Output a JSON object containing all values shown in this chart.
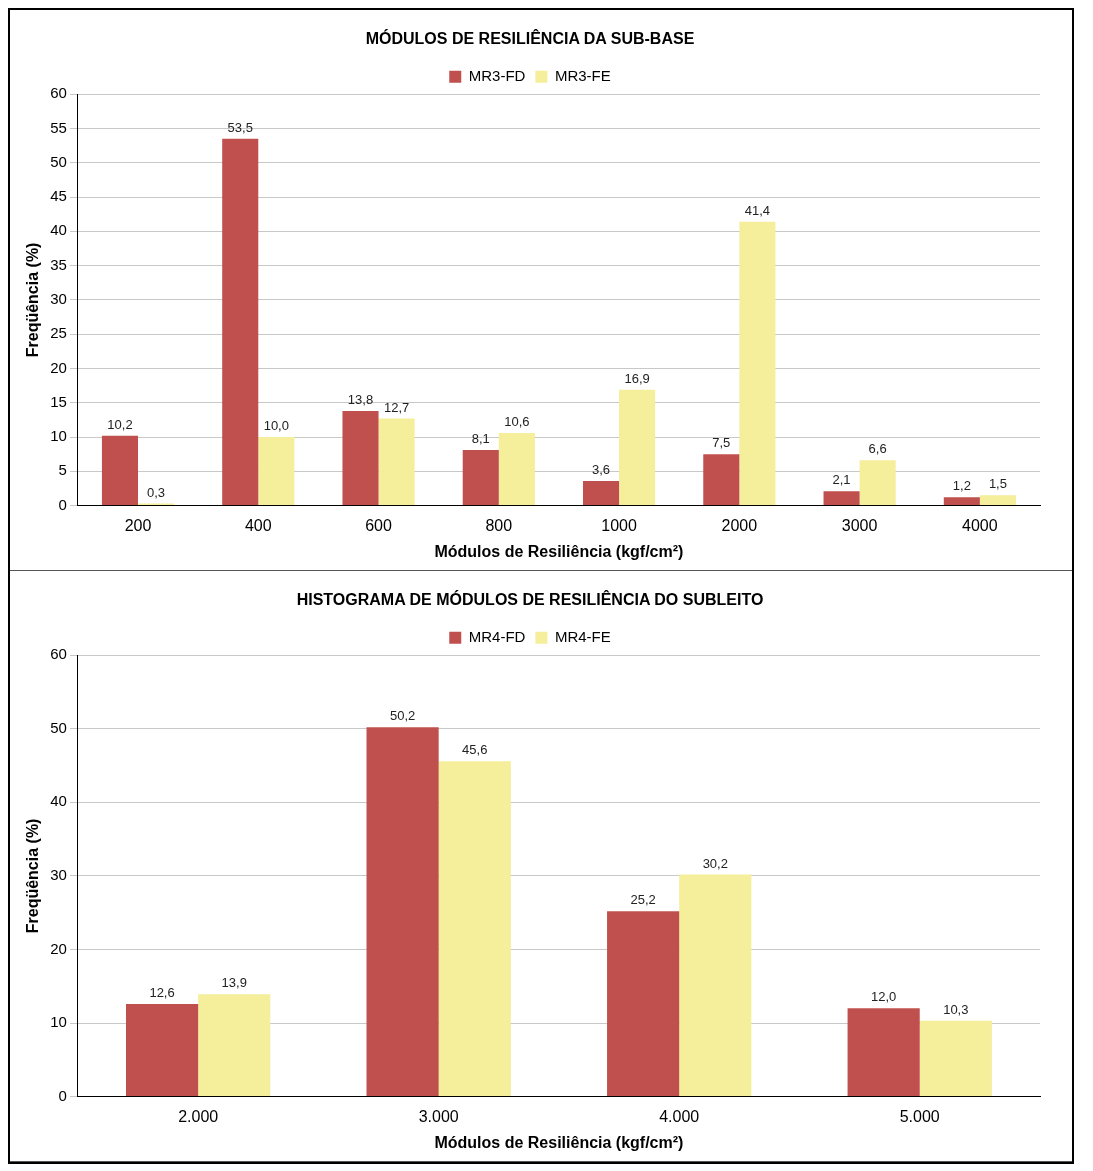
{
  "chart_data": [
    {
      "type": "bar",
      "title": "MÓDULOS DE RESILIÊNCIA DA SUB-BASE",
      "xlabel": "Módulos de Resiliência (kgf/cm²)",
      "ylabel": "Freqüência (%)",
      "categories": [
        "200",
        "400",
        "600",
        "800",
        "1000",
        "2000",
        "3000",
        "4000"
      ],
      "series": [
        {
          "name": "MR3-FD",
          "color": "#c0504d",
          "values": [
            10.2,
            53.5,
            13.8,
            8.1,
            3.6,
            7.5,
            2.1,
            1.2
          ],
          "value_labels": [
            "10,2",
            "53,5",
            "13,8",
            "8,1",
            "3,6",
            "7,5",
            "2,1",
            "1,2"
          ]
        },
        {
          "name": "MR3-FE",
          "color": "#f5ee9a",
          "values": [
            0.3,
            10.0,
            12.7,
            10.6,
            16.9,
            41.4,
            6.6,
            1.5
          ],
          "value_labels": [
            "0,3",
            "10,0",
            "12,7",
            "10,6",
            "16,9",
            "41,4",
            "6,6",
            "1,5"
          ]
        }
      ],
      "ylim": [
        0,
        60
      ],
      "yticks": [
        0,
        5,
        10,
        15,
        20,
        25,
        30,
        35,
        40,
        45,
        50,
        55,
        60
      ],
      "grid": "y",
      "legend": "top"
    },
    {
      "type": "bar",
      "title": "HISTOGRAMA DE MÓDULOS DE RESILIÊNCIA DO SUBLEITO",
      "xlabel": "Módulos de Resiliência (kgf/cm²)",
      "ylabel": "Freqüência (%)",
      "categories": [
        "2.000",
        "3.000",
        "4.000",
        "5.000"
      ],
      "series": [
        {
          "name": "MR4-FD",
          "color": "#c0504d",
          "values": [
            12.6,
            50.2,
            25.2,
            12.0
          ],
          "value_labels": [
            "12,6",
            "50,2",
            "25,2",
            "12,0"
          ]
        },
        {
          "name": "MR4-FE",
          "color": "#f5ee9a",
          "values": [
            13.9,
            45.6,
            30.2,
            10.3
          ],
          "value_labels": [
            "13,9",
            "45,6",
            "30,2",
            "10,3"
          ]
        }
      ],
      "ylim": [
        0,
        60
      ],
      "yticks": [
        0,
        10,
        20,
        30,
        40,
        50,
        60
      ],
      "grid": "y",
      "legend": "top"
    }
  ]
}
